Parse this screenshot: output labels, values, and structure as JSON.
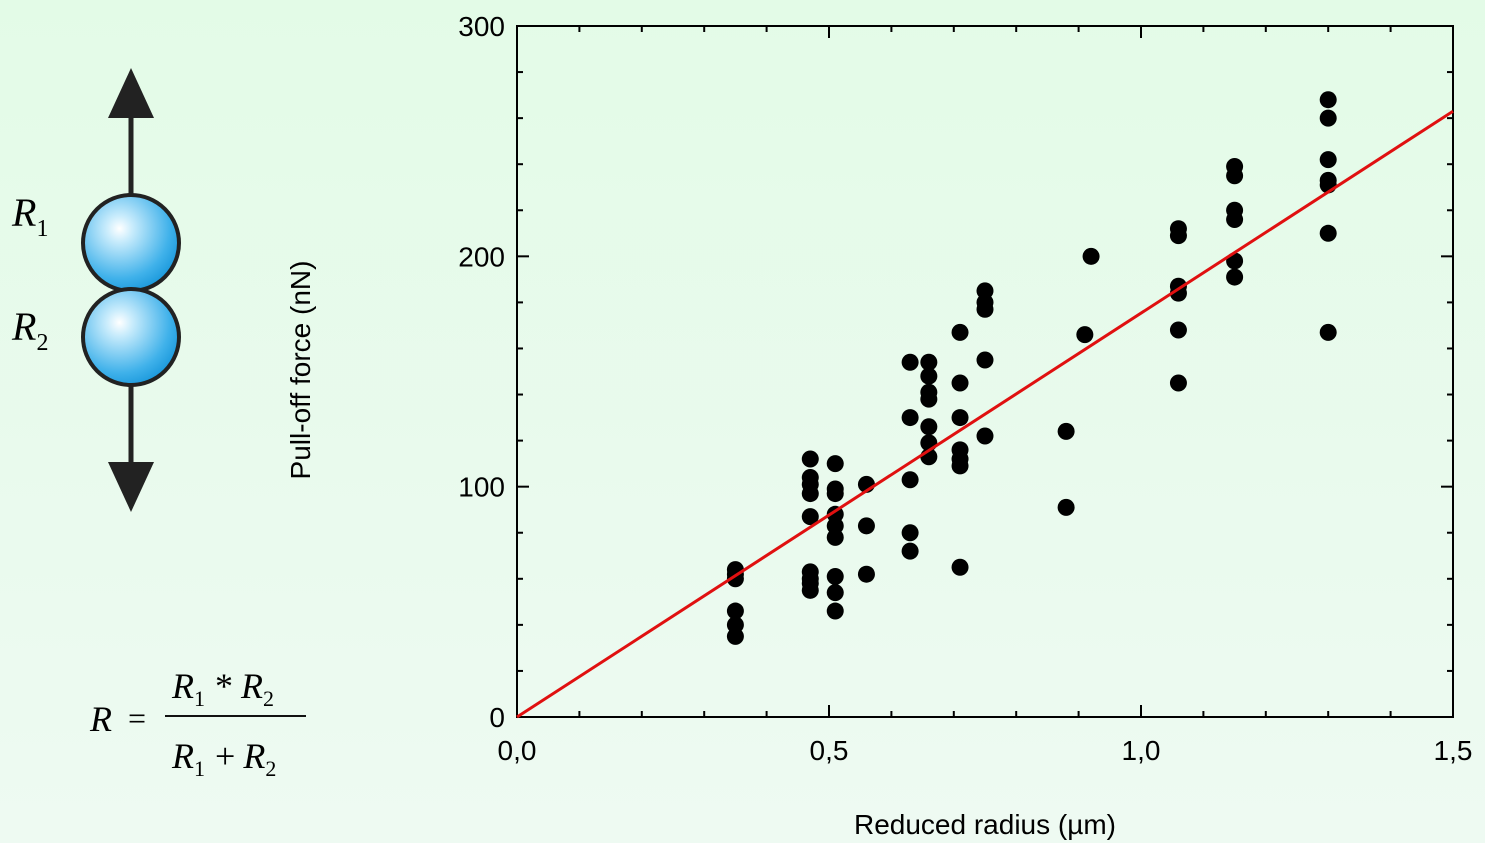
{
  "diagram": {
    "sphere1_label": "R",
    "sphere1_sub": "1",
    "sphere2_label": "R",
    "sphere2_sub": "2",
    "sphere_color": "#1aa3e6",
    "arrow_color": "#222222"
  },
  "formula": {
    "lhs": "R",
    "num_a": "R",
    "num_a_sub": "1",
    "num_op": "*",
    "num_b": "R",
    "num_b_sub": "2",
    "den_a": "R",
    "den_a_sub": "1",
    "den_op": "+",
    "den_b": "R",
    "den_b_sub": "2"
  },
  "chart_data": {
    "type": "scatter",
    "title": "",
    "xlabel": "Reduced radius (µm)",
    "ylabel": "Pull-off force (nN)",
    "xlim": [
      0,
      1.5
    ],
    "ylim": [
      0,
      300
    ],
    "xticks": [
      0,
      0.5,
      1.0,
      1.5
    ],
    "xtick_labels": [
      "0,0",
      "0,5",
      "1,0",
      "1,5"
    ],
    "yticks": [
      0,
      100,
      200,
      300
    ],
    "ytick_labels": [
      "0",
      "100",
      "200",
      "300"
    ],
    "grid": false,
    "marker_color": "#000000",
    "fit_color": "#e01010",
    "fit_line": {
      "x": [
        0,
        1.5
      ],
      "y": [
        0,
        263
      ]
    },
    "points": [
      [
        0.35,
        64
      ],
      [
        0.35,
        62
      ],
      [
        0.35,
        60
      ],
      [
        0.35,
        46
      ],
      [
        0.35,
        40
      ],
      [
        0.35,
        35
      ],
      [
        0.47,
        112
      ],
      [
        0.47,
        104
      ],
      [
        0.47,
        101
      ],
      [
        0.47,
        97
      ],
      [
        0.47,
        87
      ],
      [
        0.47,
        63
      ],
      [
        0.47,
        60
      ],
      [
        0.47,
        58
      ],
      [
        0.47,
        55
      ],
      [
        0.51,
        110
      ],
      [
        0.51,
        99
      ],
      [
        0.51,
        97
      ],
      [
        0.51,
        88
      ],
      [
        0.51,
        83
      ],
      [
        0.51,
        78
      ],
      [
        0.51,
        61
      ],
      [
        0.51,
        54
      ],
      [
        0.51,
        46
      ],
      [
        0.56,
        101
      ],
      [
        0.56,
        83
      ],
      [
        0.56,
        62
      ],
      [
        0.63,
        154
      ],
      [
        0.63,
        130
      ],
      [
        0.63,
        103
      ],
      [
        0.63,
        80
      ],
      [
        0.63,
        72
      ],
      [
        0.66,
        154
      ],
      [
        0.66,
        148
      ],
      [
        0.66,
        141
      ],
      [
        0.66,
        138
      ],
      [
        0.66,
        126
      ],
      [
        0.66,
        119
      ],
      [
        0.66,
        113
      ],
      [
        0.71,
        167
      ],
      [
        0.71,
        145
      ],
      [
        0.71,
        130
      ],
      [
        0.71,
        116
      ],
      [
        0.71,
        112
      ],
      [
        0.71,
        109
      ],
      [
        0.71,
        65
      ],
      [
        0.75,
        185
      ],
      [
        0.75,
        180
      ],
      [
        0.75,
        177
      ],
      [
        0.75,
        155
      ],
      [
        0.75,
        122
      ],
      [
        0.88,
        124
      ],
      [
        0.88,
        91
      ],
      [
        0.91,
        166
      ],
      [
        0.92,
        200
      ],
      [
        1.06,
        212
      ],
      [
        1.06,
        209
      ],
      [
        1.06,
        187
      ],
      [
        1.06,
        184
      ],
      [
        1.06,
        168
      ],
      [
        1.06,
        145
      ],
      [
        1.15,
        239
      ],
      [
        1.15,
        235
      ],
      [
        1.15,
        220
      ],
      [
        1.15,
        216
      ],
      [
        1.15,
        198
      ],
      [
        1.15,
        191
      ],
      [
        1.3,
        268
      ],
      [
        1.3,
        260
      ],
      [
        1.3,
        242
      ],
      [
        1.3,
        233
      ],
      [
        1.3,
        231
      ],
      [
        1.3,
        210
      ],
      [
        1.3,
        167
      ]
    ]
  }
}
